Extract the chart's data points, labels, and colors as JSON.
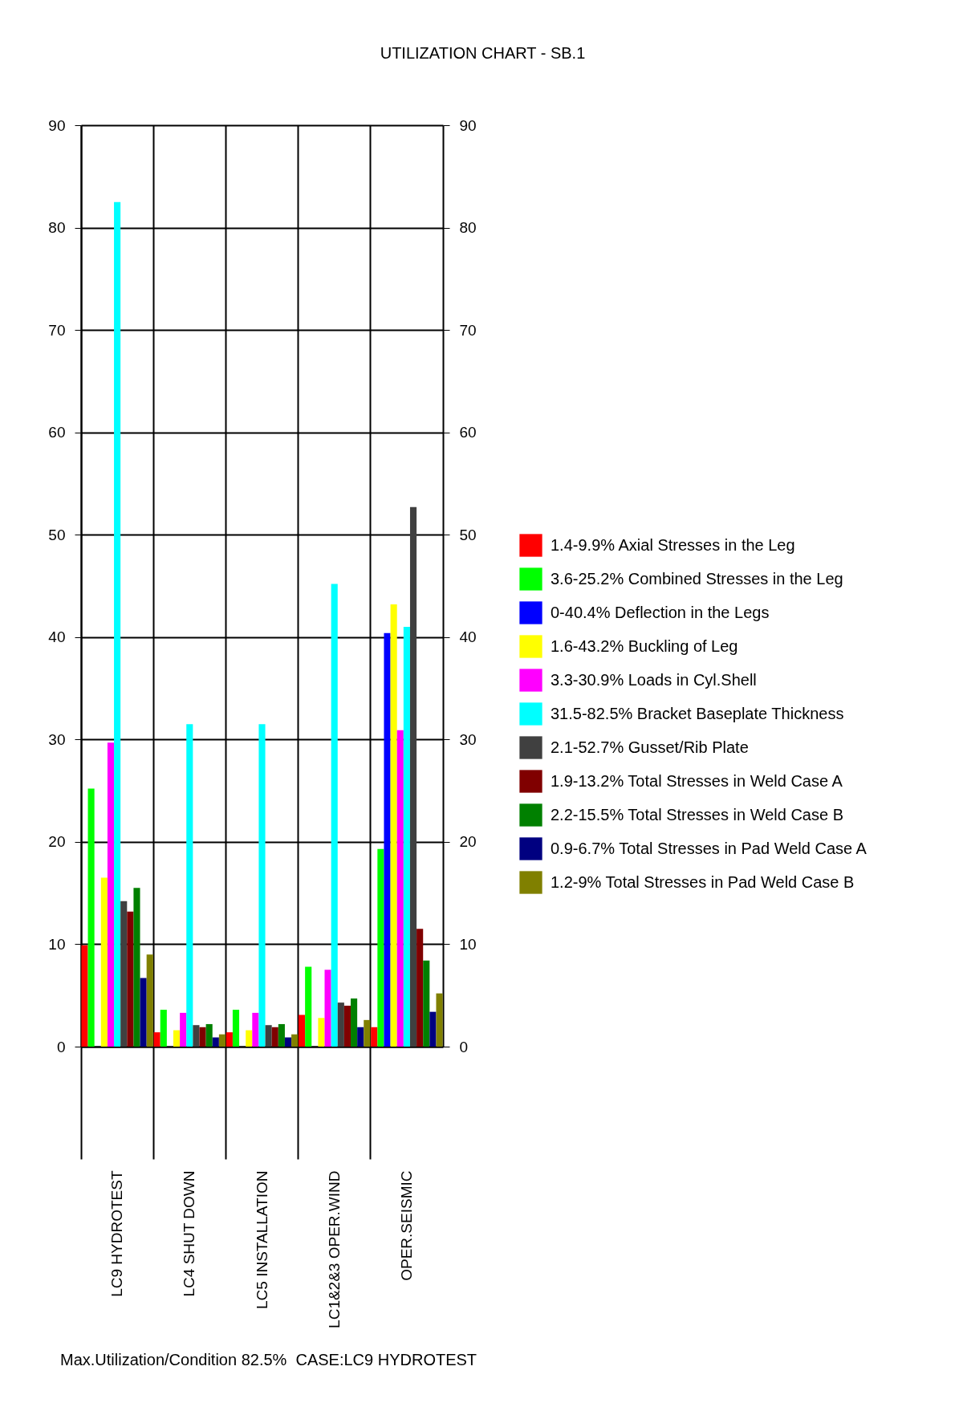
{
  "chart_data": {
    "type": "bar",
    "title": "UTILIZATION CHART - SB.1",
    "annotations": [
      "Max.Utilization/Condition 82.5%  CASE:LC9 HYDROTEST"
    ],
    "categories": [
      "LC9 HYDROTEST",
      "LC4 SHUT DOWN",
      "LC5 INSTALLATION",
      "LC1&2&3 OPER.WIND",
      "OPER.SEISMIC"
    ],
    "series": [
      {
        "name": "1.4-9.9% Axial Stresses in the Leg",
        "color": "#ff0000",
        "values": [
          9.9,
          1.4,
          1.4,
          3.1,
          1.9
        ]
      },
      {
        "name": "3.6-25.2% Combined Stresses in the Leg",
        "color": "#00ff00",
        "values": [
          25.2,
          3.6,
          3.6,
          7.8,
          19.3
        ]
      },
      {
        "name": "0-40.4% Deflection in the Legs",
        "color": "#0000ff",
        "values": [
          0,
          0,
          0,
          0,
          40.4
        ]
      },
      {
        "name": "1.6-43.2% Buckling of Leg",
        "color": "#ffff00",
        "values": [
          16.5,
          1.6,
          1.6,
          2.8,
          43.2
        ]
      },
      {
        "name": "3.3-30.9% Loads in Cyl.Shell",
        "color": "#ff00ff",
        "values": [
          29.7,
          3.3,
          3.3,
          7.5,
          30.9
        ]
      },
      {
        "name": "31.5-82.5% Bracket Baseplate Thickness",
        "color": "#00ffff",
        "values": [
          82.5,
          31.5,
          31.5,
          45.2,
          41.0
        ]
      },
      {
        "name": "2.1-52.7% Gusset/Rib Plate",
        "color": "#404040",
        "values": [
          14.2,
          2.1,
          2.1,
          4.3,
          52.7
        ]
      },
      {
        "name": "1.9-13.2% Total Stresses in Weld Case A",
        "color": "#800000",
        "values": [
          13.2,
          1.9,
          1.9,
          4.0,
          11.5
        ]
      },
      {
        "name": "2.2-15.5% Total Stresses in Weld Case B",
        "color": "#008000",
        "values": [
          15.5,
          2.2,
          2.2,
          4.7,
          8.4
        ]
      },
      {
        "name": "0.9-6.7% Total Stresses in Pad Weld Case A",
        "color": "#000080",
        "values": [
          6.7,
          0.9,
          0.9,
          1.9,
          3.4
        ]
      },
      {
        "name": "1.2-9% Total Stresses in Pad Weld Case B",
        "color": "#808000",
        "values": [
          9.0,
          1.2,
          1.2,
          2.6,
          5.2
        ]
      }
    ],
    "ylim": [
      0,
      90
    ],
    "yticks": [
      0,
      10,
      20,
      30,
      40,
      50,
      60,
      70,
      80,
      90
    ],
    "y2lim": [
      0,
      90
    ],
    "y2ticks": [
      0,
      10,
      20,
      30,
      40,
      50,
      60,
      70,
      80,
      90
    ],
    "grid": true,
    "legend": "right"
  }
}
